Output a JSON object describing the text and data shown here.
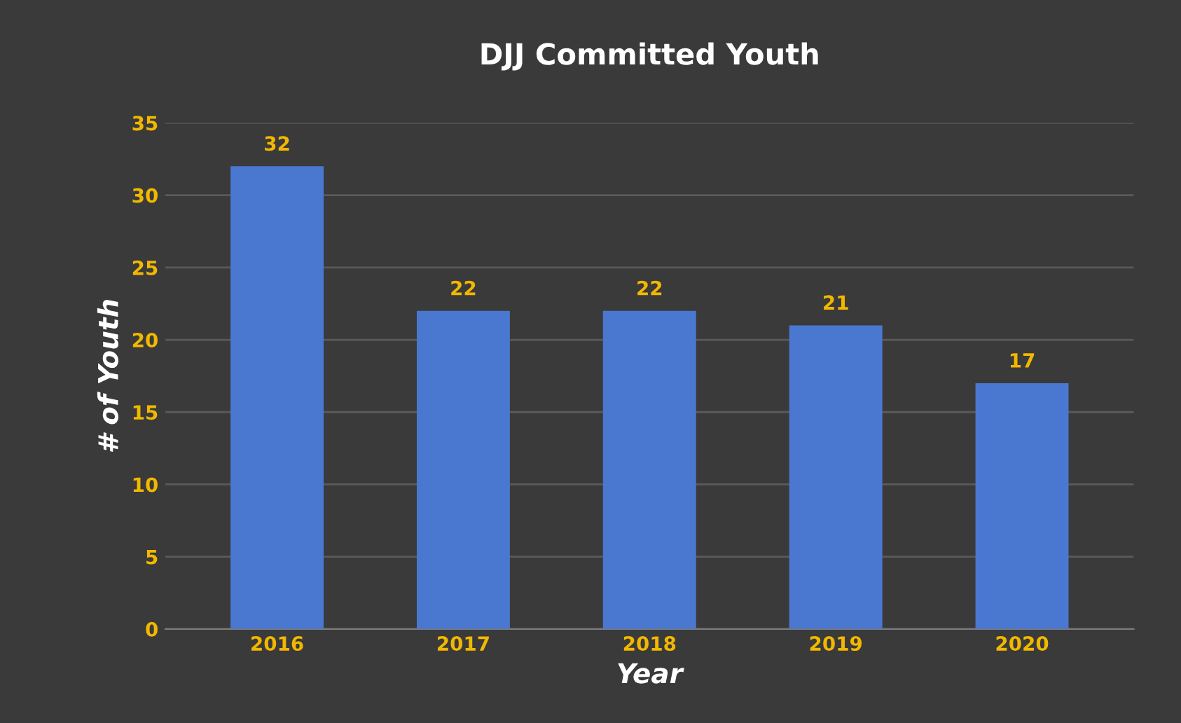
{
  "chart_data": {
    "type": "bar",
    "title": "DJJ Committed Youth",
    "xlabel": "Year",
    "ylabel": "# of Youth",
    "categories": [
      "2016",
      "2017",
      "2018",
      "2019",
      "2020"
    ],
    "values": [
      32,
      22,
      22,
      21,
      17
    ],
    "color": "#4a78d0",
    "ylim": [
      0,
      35
    ],
    "yticks": [
      0,
      5,
      10,
      15,
      20,
      25,
      30,
      35
    ],
    "grid": "y",
    "data_labels": true
  }
}
